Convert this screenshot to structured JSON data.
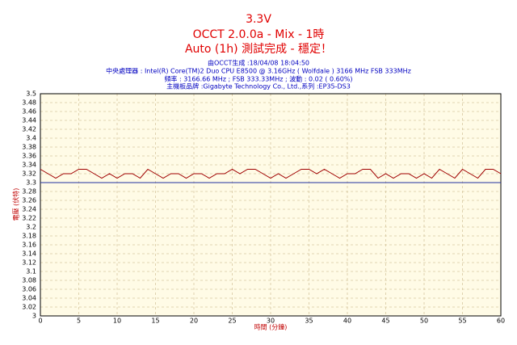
{
  "chart_data": {
    "type": "line",
    "title": "3.3V",
    "subtitle": "OCCT 2.0.0a - Mix - 1時",
    "status": "Auto (1h) 測試完成 - 穩定！",
    "info": [
      "由OCCT生成 :18/04/08 18:04:50",
      "中央處理器 : Intel(R) Core(TM)2 Duo CPU E8500 @ 3.16GHz ( Wolfdale ) 3166 MHz FSB 333MHz",
      "頻率 : 3166.66 MHz ; FSB 333.33MHz ; 波動 : 0.02 ( 0.60%)",
      "主機板品牌 :Gigabyte Technology Co., Ltd.,系列 :EP35-DS3"
    ],
    "x_label": "時間 (分鐘)",
    "y_label": "電壓 (伏特)",
    "x": [
      0,
      1,
      2,
      3,
      4,
      5,
      6,
      7,
      8,
      9,
      10,
      11,
      12,
      13,
      14,
      15,
      16,
      17,
      18,
      19,
      20,
      21,
      22,
      23,
      24,
      25,
      26,
      27,
      28,
      29,
      30,
      31,
      32,
      33,
      34,
      35,
      36,
      37,
      38,
      39,
      40,
      41,
      42,
      43,
      44,
      45,
      46,
      47,
      48,
      49,
      50,
      51,
      52,
      53,
      54,
      55,
      56,
      57,
      58,
      59,
      60
    ],
    "series": [
      {
        "color": "#a00000",
        "values": [
          3.33,
          3.32,
          3.31,
          3.32,
          3.32,
          3.33,
          3.33,
          3.32,
          3.31,
          3.32,
          3.31,
          3.32,
          3.32,
          3.31,
          3.33,
          3.32,
          3.31,
          3.32,
          3.32,
          3.31,
          3.32,
          3.32,
          3.31,
          3.32,
          3.32,
          3.33,
          3.32,
          3.33,
          3.33,
          3.32,
          3.31,
          3.32,
          3.31,
          3.32,
          3.33,
          3.33,
          3.32,
          3.33,
          3.32,
          3.31,
          3.32,
          3.32,
          3.33,
          3.33,
          3.31,
          3.32,
          3.31,
          3.32,
          3.32,
          3.31,
          3.32,
          3.31,
          3.33,
          3.32,
          3.31,
          3.33,
          3.32,
          3.31,
          3.33,
          3.33,
          3.32
        ]
      },
      {
        "color": "#2030a0",
        "x": [
          0,
          60
        ],
        "values": [
          3.3,
          3.3
        ]
      }
    ],
    "xlim": [
      0,
      60
    ],
    "xticks": [
      0,
      5,
      10,
      15,
      20,
      25,
      30,
      35,
      40,
      45,
      50,
      55,
      60
    ],
    "ylim": [
      3.0,
      3.5
    ],
    "yticks": [
      3.0,
      3.02,
      3.04,
      3.06,
      3.08,
      3.1,
      3.12,
      3.14,
      3.16,
      3.18,
      3.2,
      3.22,
      3.24,
      3.26,
      3.28,
      3.3,
      3.32,
      3.34,
      3.36,
      3.38,
      3.4,
      3.42,
      3.44,
      3.46,
      3.48,
      3.5
    ],
    "grid": true
  }
}
